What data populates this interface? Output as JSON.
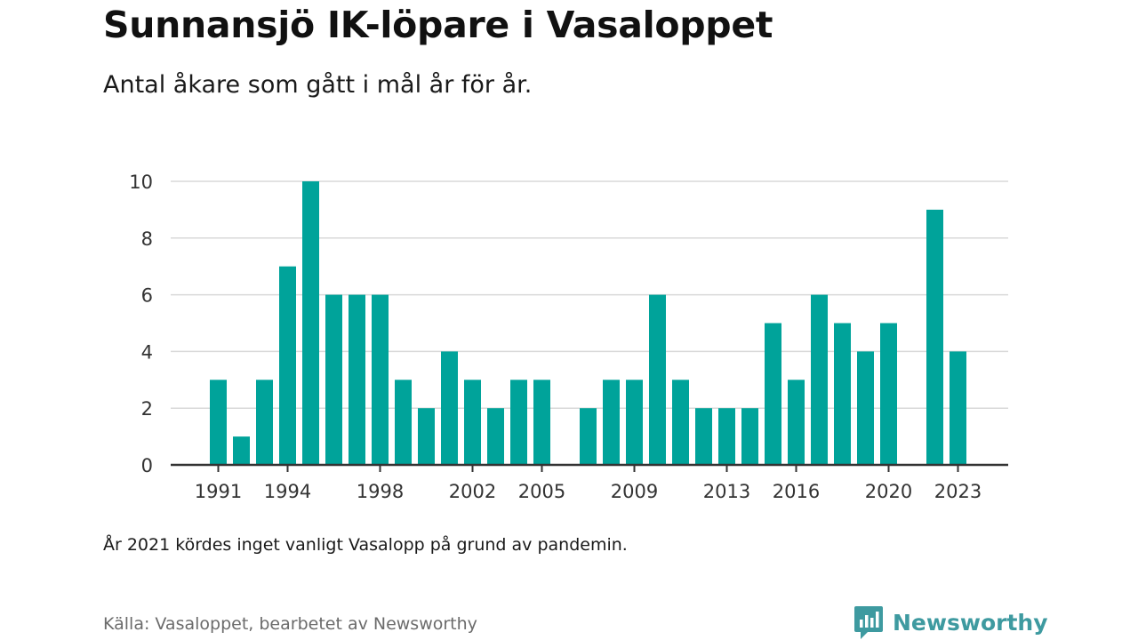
{
  "header": {
    "title": "Sunnansjö IK-löpare i Vasaloppet",
    "subtitle": "Antal åkare som gått i mål år för år."
  },
  "footer": {
    "note": "År 2021 kördes inget vanligt Vasalopp på grund av pandemin.",
    "source": "Källa: Vasaloppet, bearbetet av Newsworthy",
    "brand": "Newsworthy"
  },
  "colors": {
    "bar": "#00a39a",
    "grid": "#d9d9d9",
    "axis": "#333333",
    "brand": "#3e9aa0"
  },
  "chart_data": {
    "type": "bar",
    "title": "Sunnansjö IK-löpare i Vasaloppet",
    "subtitle": "Antal åkare som gått i mål år för år.",
    "xlabel": "",
    "ylabel": "",
    "categories": [
      1991,
      1992,
      1993,
      1994,
      1995,
      1996,
      1997,
      1998,
      1999,
      2000,
      2001,
      2002,
      2003,
      2004,
      2005,
      2006,
      2007,
      2008,
      2009,
      2010,
      2011,
      2012,
      2013,
      2014,
      2015,
      2016,
      2017,
      2018,
      2019,
      2020,
      2021,
      2022,
      2023
    ],
    "values": [
      3,
      1,
      3,
      7,
      10,
      6,
      6,
      6,
      3,
      2,
      4,
      3,
      2,
      3,
      3,
      0,
      2,
      3,
      3,
      6,
      3,
      2,
      2,
      2,
      5,
      3,
      6,
      5,
      4,
      5,
      0,
      9,
      4
    ],
    "x_tick_labels": [
      "1991",
      "1994",
      "1998",
      "2002",
      "2005",
      "2009",
      "2013",
      "2016",
      "2020",
      "2023"
    ],
    "y_ticks": [
      0,
      2,
      4,
      6,
      8,
      10
    ],
    "ylim": [
      0,
      10
    ],
    "grid": true,
    "legend": "none"
  }
}
